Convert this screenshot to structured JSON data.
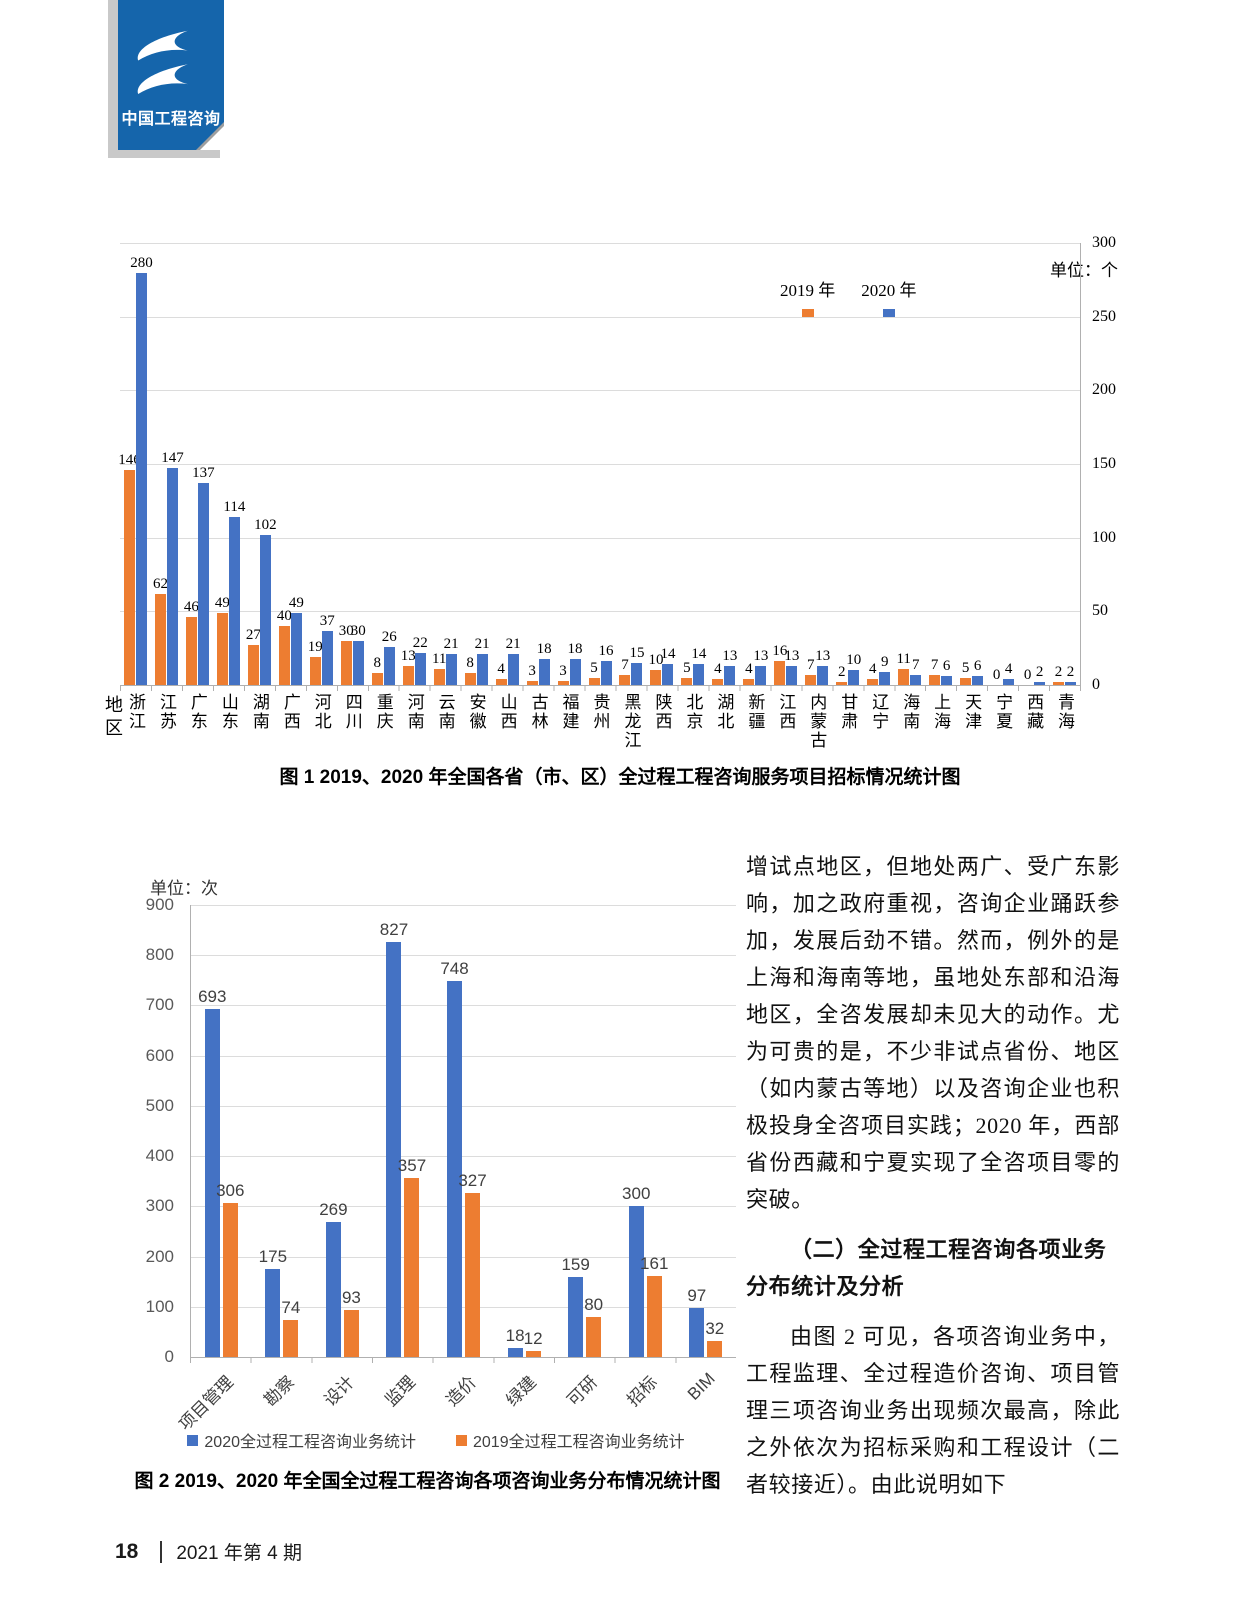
{
  "logo": {
    "text": "中国工程咨询",
    "color": "#1565ab"
  },
  "chart_data": [
    {
      "type": "bar",
      "caption": "图 1  2019、2020 年全国各省（市、区）全过程工程咨询服务项目招标情况统计图",
      "unit_label": "单位：个",
      "axis_title": "地区",
      "grid": true,
      "legend_position": "top-right-inside",
      "ylim": [
        0,
        300
      ],
      "yticks": [
        300,
        250,
        200,
        150,
        100,
        50,
        0
      ],
      "categories": [
        "浙江",
        "江苏",
        "广东",
        "山东",
        "湖南",
        "广西",
        "河北",
        "四川",
        "重庆",
        "河南",
        "云南",
        "安徽",
        "山西",
        "古林",
        "福建",
        "贵州",
        "黑龙江",
        "陕西",
        "北京",
        "湖北",
        "新疆",
        "江西",
        "内蒙古",
        "甘肃",
        "辽宁",
        "海南",
        "上海",
        "天津",
        "宁夏",
        "西藏",
        "青海"
      ],
      "series": [
        {
          "name": "2019 年",
          "color": "#ED7D31",
          "values": [
            146,
            62,
            46,
            49,
            27,
            40,
            19,
            30,
            8,
            13,
            11,
            8,
            4,
            3,
            3,
            5,
            7,
            10,
            5,
            4,
            4,
            16,
            7,
            2,
            4,
            11,
            7,
            5,
            0,
            0,
            2
          ]
        },
        {
          "name": "2020 年",
          "color": "#4472C4",
          "values": [
            280,
            147,
            137,
            114,
            102,
            49,
            37,
            30,
            26,
            22,
            21,
            21,
            21,
            18,
            18,
            16,
            15,
            14,
            14,
            13,
            13,
            13,
            13,
            10,
            9,
            7,
            6,
            6,
            4,
            2,
            2
          ]
        }
      ]
    },
    {
      "type": "bar",
      "caption": "图 2  2019、2020 年全国全过程工程咨询各项咨询业务分布情况统计图",
      "unit_label": "单位：次",
      "grid": true,
      "legend_position": "bottom",
      "ylim": [
        0,
        900
      ],
      "yticks": [
        900,
        800,
        700,
        600,
        500,
        400,
        300,
        200,
        100,
        0
      ],
      "categories": [
        "项目管理",
        "勘察",
        "设计",
        "监理",
        "造价",
        "绿建",
        "可研",
        "招标",
        "BIM"
      ],
      "series": [
        {
          "name": "2020全过程工程咨询业务统计",
          "color": "#4472C4",
          "values": [
            693,
            175,
            269,
            827,
            748,
            18,
            159,
            300,
            97
          ]
        },
        {
          "name": "2019全过程工程咨询业务统计",
          "color": "#ED7D31",
          "values": [
            306,
            74,
            93,
            357,
            327,
            12,
            80,
            161,
            32
          ]
        }
      ]
    }
  ],
  "article": {
    "paragraph1": "增试点地区，但地处两广、受广东影响，加之政府重视，咨询企业踊跃参加，发展后劲不错。然而，例外的是上海和海南等地，虽地处东部和沿海地区，全咨发展却未见大的动作。尤为可贵的是，不少非试点省份、地区（如内蒙古等地）以及咨询企业也积极投身全咨项目实践；2020 年，西部省份西藏和宁夏实现了全咨项目零的突破。",
    "heading": "（二）全过程工程咨询各项业务分布统计及分析",
    "paragraph2": "由图 2 可见，各项咨询业务中，工程监理、全过程造价咨询、项目管理三项咨询业务出现频次最高，除此之外依次为招标采购和工程设计（二者较接近）。由此说明如下"
  },
  "footer": {
    "page_number": "18",
    "issue": "2021 年第 4 期"
  }
}
